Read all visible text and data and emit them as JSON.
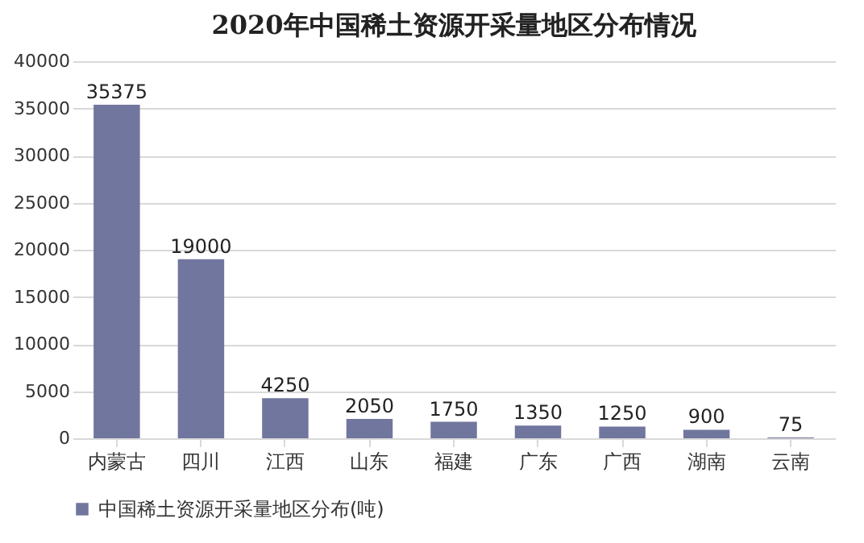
{
  "chart_data": {
    "type": "bar",
    "title": "2020年中国稀土资源开采量地区分布情况",
    "categories": [
      "内蒙古",
      "四川",
      "江西",
      "山东",
      "福建",
      "广东",
      "广西",
      "湖南",
      "云南"
    ],
    "series": [
      {
        "name": "中国稀土资源开采量地区分布(吨)",
        "color": "#71769e",
        "values": [
          35375,
          19000,
          4250,
          2050,
          1750,
          1350,
          1250,
          900,
          75
        ]
      }
    ],
    "ylim": [
      0,
      40000
    ],
    "yticks": [
      0,
      5000,
      10000,
      15000,
      20000,
      25000,
      30000,
      35000,
      40000
    ],
    "grid": "y",
    "legend": "bottom",
    "data_labels": true
  }
}
